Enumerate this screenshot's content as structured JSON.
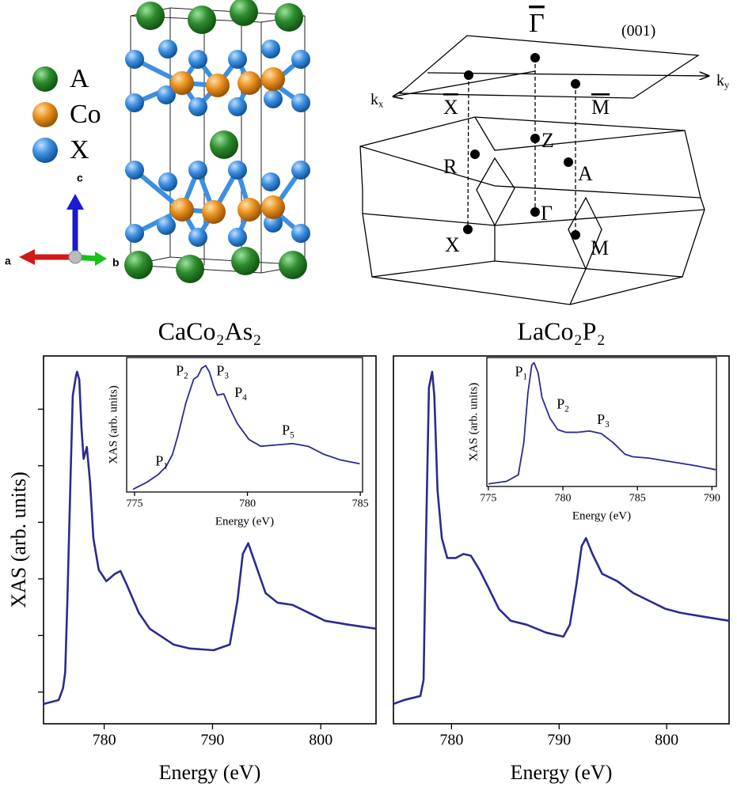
{
  "structure_legend": {
    "items": [
      {
        "label": "A",
        "color": "#2e8b2e"
      },
      {
        "label": "Co",
        "color": "#e8901e"
      },
      {
        "label": "X",
        "color": "#3d8fe0"
      }
    ]
  },
  "lattice_axes": {
    "a": "a",
    "b": "b",
    "c": "c"
  },
  "brillouin_zone": {
    "labels": [
      {
        "text": "Γ",
        "overline": true
      },
      {
        "text": "(001)"
      },
      {
        "text": "k",
        "sub": "x"
      },
      {
        "text": "k",
        "sub": "y"
      },
      {
        "text": "X",
        "overline": true
      },
      {
        "text": "M",
        "overline": true
      },
      {
        "text": "Z"
      },
      {
        "text": "R"
      },
      {
        "text": "A"
      },
      {
        "text": "Γ"
      },
      {
        "text": "X"
      },
      {
        "text": "M"
      }
    ]
  },
  "chart_data": [
    {
      "type": "line",
      "title": "CaCo₂As₂",
      "xlabel": "Energy (eV)",
      "ylabel": "XAS (arb. units)",
      "color": "#2b2b8f",
      "x": [
        774.4,
        775.8,
        776.2,
        776.4,
        776.6,
        776.9,
        777.1,
        777.4,
        777.5,
        777.7,
        777.9,
        778.1,
        778.4,
        778.7,
        779.0,
        779.5,
        780.2,
        781.0,
        781.5,
        782.1,
        783.2,
        784.2,
        785.3,
        786.4,
        787.9,
        790.1,
        791.6,
        792.3,
        792.8,
        793.3,
        793.9,
        794.9,
        796.0,
        797.4,
        798.9,
        800.4,
        802.6,
        805.1
      ],
      "values": [
        -0.21,
        -0.14,
        0.07,
        0.35,
        1.61,
        3.84,
        5.24,
        5.59,
        5.66,
        5.52,
        4.68,
        4.12,
        4.33,
        3.7,
        2.72,
        2.16,
        1.96,
        2.09,
        2.14,
        1.89,
        1.4,
        1.12,
        0.98,
        0.84,
        0.77,
        0.74,
        0.84,
        1.61,
        2.44,
        2.63,
        2.3,
        1.75,
        1.58,
        1.54,
        1.4,
        1.26,
        1.19,
        1.12
      ],
      "xlim": [
        774.4,
        805.1
      ],
      "ylim": [
        -0.56,
        5.94
      ],
      "xticks": [
        780,
        790,
        800
      ],
      "yticks": [
        0,
        1,
        2,
        3,
        4,
        5
      ],
      "ytick_labels": false
    },
    {
      "type": "line",
      "xlabel": "Energy (eV)",
      "ylabel": "XAS (arb. units)",
      "color": "#2b2b8f",
      "x": [
        774.93,
        775.52,
        776.05,
        776.4,
        776.68,
        776.92,
        777.27,
        777.62,
        777.8,
        777.97,
        778.15,
        778.32,
        778.5,
        778.67,
        778.95,
        779.2,
        779.55,
        780.07,
        780.59,
        781.29,
        781.99,
        782.69,
        783.39,
        784.09,
        784.97
      ],
      "values": [
        0.02,
        0.07,
        0.13,
        0.19,
        0.28,
        0.42,
        0.66,
        0.84,
        0.86,
        0.92,
        0.94,
        0.89,
        0.79,
        0.72,
        0.73,
        0.63,
        0.51,
        0.39,
        0.34,
        0.35,
        0.36,
        0.34,
        0.28,
        0.24,
        0.21
      ],
      "xlim": [
        774.65,
        785.1
      ],
      "ylim": [
        0,
        1
      ],
      "xticks": [
        775,
        780,
        785
      ],
      "annotations": [
        {
          "text": "P",
          "sub": "1",
          "x": 776.2,
          "y": 0.22
        },
        {
          "text": "P",
          "sub": "2",
          "x": 777.1,
          "y": 0.89
        },
        {
          "text": "P",
          "sub": "3",
          "x": 778.9,
          "y": 0.89
        },
        {
          "text": "P",
          "sub": "4",
          "x": 779.7,
          "y": 0.73
        },
        {
          "text": "P",
          "sub": "5",
          "x": 781.8,
          "y": 0.45
        }
      ]
    },
    {
      "type": "line",
      "title": "LaCo₂P₂",
      "xlabel": "Energy (eV)",
      "color": "#2b2b8f",
      "x": [
        774.6,
        775.6,
        777.1,
        777.4,
        777.6,
        777.9,
        778.2,
        778.4,
        778.7,
        779.1,
        779.6,
        780.4,
        781.1,
        781.8,
        782.6,
        783.5,
        784.4,
        785.5,
        787.0,
        788.8,
        790.4,
        791.0,
        791.6,
        792.1,
        792.5,
        793.1,
        794.0,
        795.4,
        796.9,
        798.4,
        799.9,
        801.3,
        803.5,
        805.8
      ],
      "values": [
        -0.21,
        -0.14,
        -0.07,
        0.21,
        2.44,
        5.38,
        5.66,
        5.24,
        3.56,
        2.72,
        2.37,
        2.37,
        2.44,
        2.41,
        2.16,
        1.82,
        1.47,
        1.26,
        1.19,
        1.05,
        0.98,
        1.19,
        1.89,
        2.58,
        2.72,
        2.44,
        2.09,
        1.96,
        1.75,
        1.61,
        1.47,
        1.4,
        1.33,
        1.26
      ],
      "xlim": [
        774.6,
        805.8
      ],
      "ylim": [
        -0.56,
        5.94
      ],
      "xticks": [
        780,
        790,
        800
      ]
    },
    {
      "type": "line",
      "xlabel": "Energy (eV)",
      "ylabel": "XAS (arb. units)",
      "color": "#2b2b8f",
      "x": [
        775.0,
        776.22,
        777.01,
        777.38,
        777.65,
        777.91,
        778.07,
        778.34,
        778.6,
        779.13,
        779.66,
        780.19,
        780.99,
        781.78,
        782.58,
        783.37,
        784.17,
        784.7,
        785.76,
        787.35,
        788.94,
        790.26
      ],
      "values": [
        0.02,
        0.04,
        0.09,
        0.34,
        0.72,
        0.94,
        0.96,
        0.88,
        0.69,
        0.53,
        0.44,
        0.42,
        0.42,
        0.43,
        0.41,
        0.34,
        0.25,
        0.23,
        0.22,
        0.19,
        0.16,
        0.13
      ],
      "xlim": [
        774.9,
        790.3
      ],
      "ylim": [
        0,
        1
      ],
      "xticks": [
        775,
        780,
        785,
        790
      ],
      "annotations": [
        {
          "text": "P",
          "sub": "1",
          "x": 777.2,
          "y": 0.88
        },
        {
          "text": "P",
          "sub": "2",
          "x": 780.0,
          "y": 0.63
        },
        {
          "text": "P",
          "sub": "3",
          "x": 782.7,
          "y": 0.51
        }
      ]
    }
  ]
}
